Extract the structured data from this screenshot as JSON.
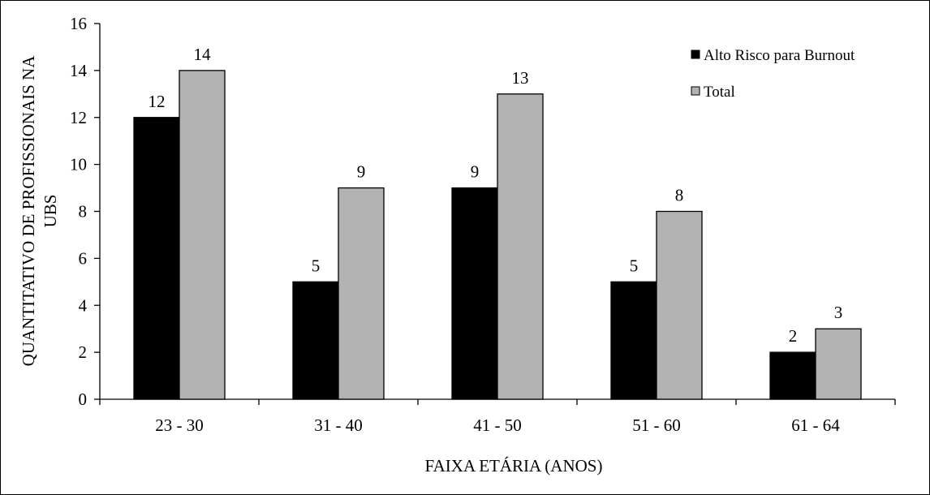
{
  "chart_data": {
    "type": "bar",
    "categories": [
      "23 - 30",
      "31 - 40",
      "41 - 50",
      "51 - 60",
      "61 - 64"
    ],
    "series": [
      {
        "name": "Alto Risco para Burnout",
        "values": [
          12,
          5,
          9,
          5,
          2
        ],
        "color": "#000000"
      },
      {
        "name": "Total",
        "values": [
          14,
          9,
          13,
          8,
          3
        ],
        "color": "#b2b2b2"
      }
    ],
    "title": "",
    "xlabel": "FAIXA ETÁRIA  (ANOS)",
    "ylabel_lines": [
      "QUANTITATIVO  DE PROFISSIONAIS NA",
      "UBS"
    ],
    "ylim": [
      0,
      16
    ],
    "yticks": [
      0,
      2,
      4,
      6,
      8,
      10,
      12,
      14,
      16
    ],
    "grid": false,
    "legend_position": "top-right"
  }
}
